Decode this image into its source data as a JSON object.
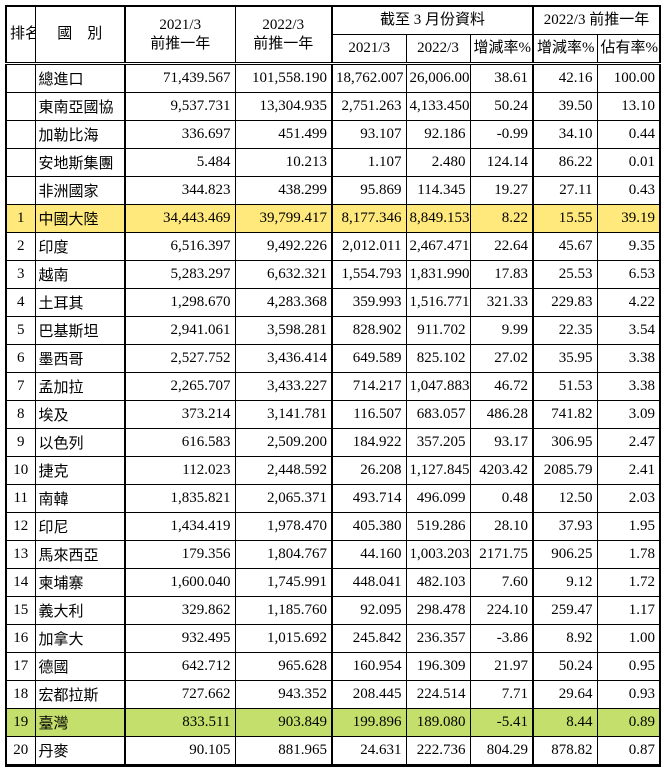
{
  "header": {
    "rank": "排名",
    "country": "國　別",
    "col_2021_prev": {
      "line1": "2021/3",
      "line2": "前推一年"
    },
    "col_2022_prev": {
      "line1": "2022/3",
      "line2": "前推一年"
    },
    "asof_group": "截至 3 月份資料",
    "asof_cols": [
      "2021/3",
      "2022/3",
      "增減率%"
    ],
    "prev_group": "2022/3 前推一年",
    "prev_cols": [
      "增減率%",
      "佔有率%"
    ]
  },
  "colors": {
    "yellow": "#ffe87c",
    "green": "#c4df6b"
  },
  "rows": [
    {
      "rank": "",
      "country": "總進口",
      "values": [
        "71,439.567",
        "101,558.190",
        "18,762.007",
        "26,006.008",
        "38.61",
        "42.16",
        "100.00"
      ],
      "hl": ""
    },
    {
      "rank": "",
      "country": "東南亞國協",
      "values": [
        "9,537.731",
        "13,304.935",
        "2,751.263",
        "4,133.450",
        "50.24",
        "39.50",
        "13.10"
      ],
      "hl": ""
    },
    {
      "rank": "",
      "country": "加勒比海",
      "values": [
        "336.697",
        "451.499",
        "93.107",
        "92.186",
        "-0.99",
        "34.10",
        "0.44"
      ],
      "hl": ""
    },
    {
      "rank": "",
      "country": "安地斯集團",
      "values": [
        "5.484",
        "10.213",
        "1.107",
        "2.480",
        "124.14",
        "86.22",
        "0.01"
      ],
      "hl": ""
    },
    {
      "rank": "",
      "country": "非洲國家",
      "values": [
        "344.823",
        "438.299",
        "95.869",
        "114.345",
        "19.27",
        "27.11",
        "0.43"
      ],
      "hl": ""
    },
    {
      "rank": "1",
      "country": "中國大陸",
      "values": [
        "34,443.469",
        "39,799.417",
        "8,177.346",
        "8,849.153",
        "8.22",
        "15.55",
        "39.19"
      ],
      "hl": "yellow"
    },
    {
      "rank": "2",
      "country": "印度",
      "values": [
        "6,516.397",
        "9,492.226",
        "2,012.011",
        "2,467.471",
        "22.64",
        "45.67",
        "9.35"
      ],
      "hl": ""
    },
    {
      "rank": "3",
      "country": "越南",
      "values": [
        "5,283.297",
        "6,632.321",
        "1,554.793",
        "1,831.990",
        "17.83",
        "25.53",
        "6.53"
      ],
      "hl": ""
    },
    {
      "rank": "4",
      "country": "土耳其",
      "values": [
        "1,298.670",
        "4,283.368",
        "359.993",
        "1,516.771",
        "321.33",
        "229.83",
        "4.22"
      ],
      "hl": ""
    },
    {
      "rank": "5",
      "country": "巴基斯坦",
      "values": [
        "2,941.061",
        "3,598.281",
        "828.902",
        "911.702",
        "9.99",
        "22.35",
        "3.54"
      ],
      "hl": ""
    },
    {
      "rank": "6",
      "country": "墨西哥",
      "values": [
        "2,527.752",
        "3,436.414",
        "649.589",
        "825.102",
        "27.02",
        "35.95",
        "3.38"
      ],
      "hl": ""
    },
    {
      "rank": "7",
      "country": "孟加拉",
      "values": [
        "2,265.707",
        "3,433.227",
        "714.217",
        "1,047.883",
        "46.72",
        "51.53",
        "3.38"
      ],
      "hl": ""
    },
    {
      "rank": "8",
      "country": "埃及",
      "values": [
        "373.214",
        "3,141.781",
        "116.507",
        "683.057",
        "486.28",
        "741.82",
        "3.09"
      ],
      "hl": ""
    },
    {
      "rank": "9",
      "country": "以色列",
      "values": [
        "616.583",
        "2,509.200",
        "184.922",
        "357.205",
        "93.17",
        "306.95",
        "2.47"
      ],
      "hl": ""
    },
    {
      "rank": "10",
      "country": "捷克",
      "values": [
        "112.023",
        "2,448.592",
        "26.208",
        "1,127.845",
        "4203.42",
        "2085.79",
        "2.41"
      ],
      "hl": ""
    },
    {
      "rank": "11",
      "country": "南韓",
      "values": [
        "1,835.821",
        "2,065.371",
        "493.714",
        "496.099",
        "0.48",
        "12.50",
        "2.03"
      ],
      "hl": ""
    },
    {
      "rank": "12",
      "country": "印尼",
      "values": [
        "1,434.419",
        "1,978.470",
        "405.380",
        "519.286",
        "28.10",
        "37.93",
        "1.95"
      ],
      "hl": ""
    },
    {
      "rank": "13",
      "country": "馬來西亞",
      "values": [
        "179.356",
        "1,804.767",
        "44.160",
        "1,003.203",
        "2171.75",
        "906.25",
        "1.78"
      ],
      "hl": ""
    },
    {
      "rank": "14",
      "country": "柬埔寨",
      "values": [
        "1,600.040",
        "1,745.991",
        "448.041",
        "482.103",
        "7.60",
        "9.12",
        "1.72"
      ],
      "hl": ""
    },
    {
      "rank": "15",
      "country": "義大利",
      "values": [
        "329.862",
        "1,185.760",
        "92.095",
        "298.478",
        "224.10",
        "259.47",
        "1.17"
      ],
      "hl": ""
    },
    {
      "rank": "16",
      "country": "加拿大",
      "values": [
        "932.495",
        "1,015.692",
        "245.842",
        "236.357",
        "-3.86",
        "8.92",
        "1.00"
      ],
      "hl": ""
    },
    {
      "rank": "17",
      "country": "德國",
      "values": [
        "642.712",
        "965.628",
        "160.954",
        "196.309",
        "21.97",
        "50.24",
        "0.95"
      ],
      "hl": ""
    },
    {
      "rank": "18",
      "country": "宏都拉斯",
      "values": [
        "727.662",
        "943.352",
        "208.445",
        "224.514",
        "7.71",
        "29.64",
        "0.93"
      ],
      "hl": ""
    },
    {
      "rank": "19",
      "country": "臺灣",
      "values": [
        "833.511",
        "903.849",
        "199.896",
        "189.080",
        "-5.41",
        "8.44",
        "0.89"
      ],
      "hl": "green"
    },
    {
      "rank": "20",
      "country": "丹麥",
      "values": [
        "90.105",
        "881.965",
        "24.631",
        "222.736",
        "804.29",
        "878.82",
        "0.87"
      ],
      "hl": ""
    }
  ]
}
